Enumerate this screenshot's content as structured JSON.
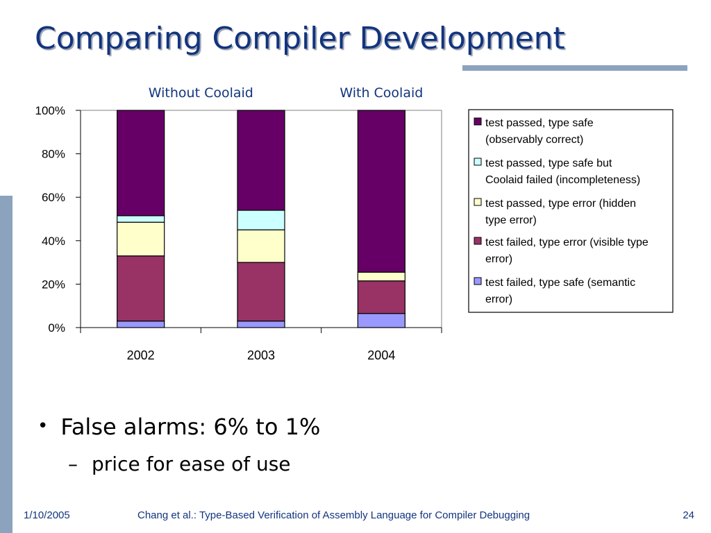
{
  "slide": {
    "title": "Comparing Compiler Development",
    "bullet": "False alarms:  6% to 1%",
    "sub_bullet": "price for ease of use",
    "footer": {
      "date": "1/10/2005",
      "center": "Chang et al.: Type-Based Verification of Assembly Language for Compiler Debugging",
      "page": "24"
    }
  },
  "chart_data": {
    "type": "bar",
    "stacked": true,
    "normalized": true,
    "categories": [
      "2002",
      "2003",
      "2004"
    ],
    "group_labels": [
      {
        "label": "Without Coolaid",
        "categories": [
          "2002",
          "2003"
        ]
      },
      {
        "label": "With Coolaid",
        "categories": [
          "2004"
        ]
      }
    ],
    "ylim": [
      0,
      100
    ],
    "yticks": [
      "0%",
      "20%",
      "40%",
      "60%",
      "80%",
      "100%"
    ],
    "legend_position": "right",
    "grid": false,
    "series": [
      {
        "name": "test failed, type safe (semantic error)",
        "color": "#9999ff",
        "values": [
          3,
          3,
          6.5
        ]
      },
      {
        "name": "test failed, type error (visible type error)",
        "color": "#993366",
        "values": [
          30,
          27,
          15
        ]
      },
      {
        "name": "test passed, type error (hidden type error)",
        "color": "#ffffcc",
        "values": [
          15.5,
          15,
          4
        ]
      },
      {
        "name": "test passed, type safe but Coolaid failed (incompleteness)",
        "color": "#ccffff",
        "values": [
          3,
          9,
          0
        ]
      },
      {
        "name": "test passed, type safe (observably correct)",
        "color": "#660066",
        "values": [
          48.5,
          46,
          74.5
        ]
      }
    ],
    "legend_items": [
      {
        "lines": [
          "test passed, type safe",
          "(observably correct)"
        ],
        "color": "#660066"
      },
      {
        "lines": [
          "test passed, type safe but",
          "Coolaid failed (incompleteness)"
        ],
        "color": "#ccffff"
      },
      {
        "lines": [
          "test passed, type error (hidden",
          "type error)"
        ],
        "color": "#ffffcc"
      },
      {
        "lines": [
          "test failed, type error (visible type",
          "error)"
        ],
        "color": "#993366"
      },
      {
        "lines": [
          "test failed, type safe (semantic",
          "error)"
        ],
        "color": "#9999ff"
      }
    ]
  }
}
